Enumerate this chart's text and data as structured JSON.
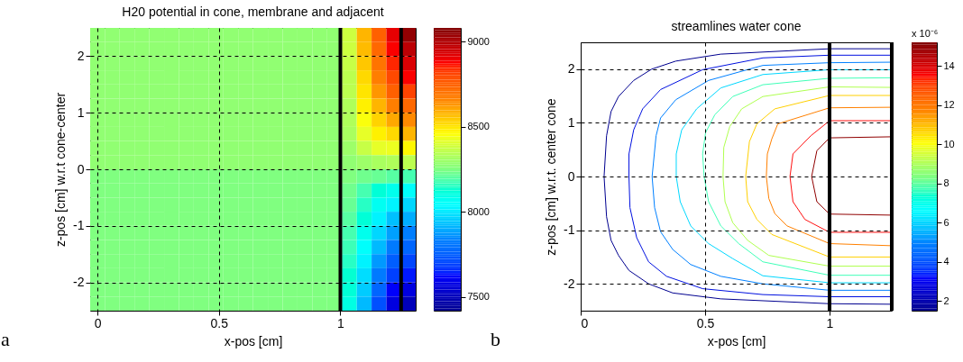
{
  "chart_data": [
    {
      "type": "heatmap",
      "title": "H20 potential in cone, membrane and adjacent",
      "xlabel": "x-pos [cm]",
      "ylabel": "z-pos [cm] w.r.t cone-center",
      "x": [
        0,
        0.061,
        0.122,
        0.183,
        0.244,
        0.305,
        0.366,
        0.427,
        0.488,
        0.549,
        0.61,
        0.671,
        0.732,
        0.793,
        0.854,
        0.915,
        0.976,
        1.037,
        1.098,
        1.159,
        1.22,
        1.281
      ],
      "y": [
        2.375,
        2.125,
        1.875,
        1.625,
        1.375,
        1.125,
        0.875,
        0.625,
        0.375,
        0.125,
        -0.125,
        -0.375,
        -0.625,
        -0.875,
        -1.125,
        -1.375,
        -1.625,
        -1.875,
        -2.125,
        -2.375
      ],
      "xlim": [
        -0.03,
        1.31
      ],
      "ylim": [
        -2.5,
        2.5
      ],
      "xticks": [
        0,
        0.5,
        1
      ],
      "yticks": [
        -2,
        -1,
        0,
        1,
        2
      ],
      "clim": [
        7420,
        9080
      ],
      "cticks": [
        7500,
        8000,
        8500,
        9000
      ],
      "grid": true,
      "cells": [
        [
          8280,
          8280,
          8280,
          8280,
          8280,
          8280,
          8280,
          8280,
          8280,
          8280,
          8280,
          8280,
          8280,
          8280,
          8280,
          8280,
          8280,
          8380,
          8580,
          8750,
          8910,
          9050
        ],
        [
          8280,
          8280,
          8280,
          8280,
          8280,
          8280,
          8280,
          8280,
          8280,
          8280,
          8280,
          8280,
          8280,
          8280,
          8280,
          8280,
          8280,
          8380,
          8570,
          8730,
          8880,
          8980
        ],
        [
          8280,
          8280,
          8280,
          8280,
          8280,
          8280,
          8280,
          8280,
          8280,
          8280,
          8280,
          8280,
          8280,
          8280,
          8280,
          8280,
          8280,
          8370,
          8550,
          8700,
          8850,
          8930
        ],
        [
          8280,
          8280,
          8280,
          8280,
          8280,
          8280,
          8280,
          8280,
          8280,
          8280,
          8280,
          8280,
          8280,
          8280,
          8280,
          8280,
          8280,
          8350,
          8520,
          8670,
          8800,
          8880
        ],
        [
          8280,
          8280,
          8280,
          8280,
          8280,
          8280,
          8280,
          8280,
          8280,
          8280,
          8280,
          8280,
          8280,
          8280,
          8280,
          8280,
          8280,
          8350,
          8500,
          8630,
          8750,
          8810
        ],
        [
          8280,
          8280,
          8280,
          8280,
          8280,
          8280,
          8280,
          8280,
          8280,
          8280,
          8280,
          8280,
          8280,
          8280,
          8280,
          8280,
          8280,
          8330,
          8480,
          8580,
          8670,
          8730
        ],
        [
          8280,
          8280,
          8280,
          8280,
          8280,
          8280,
          8280,
          8280,
          8280,
          8280,
          8280,
          8280,
          8280,
          8280,
          8280,
          8280,
          8280,
          8330,
          8450,
          8530,
          8600,
          8650
        ],
        [
          8280,
          8280,
          8280,
          8280,
          8280,
          8280,
          8280,
          8280,
          8280,
          8280,
          8280,
          8280,
          8280,
          8280,
          8280,
          8280,
          8280,
          8320,
          8420,
          8480,
          8520,
          8580
        ],
        [
          8280,
          8280,
          8280,
          8280,
          8280,
          8280,
          8280,
          8280,
          8280,
          8280,
          8280,
          8280,
          8280,
          8280,
          8280,
          8280,
          8280,
          8300,
          8370,
          8420,
          8430,
          8470
        ],
        [
          8280,
          8280,
          8280,
          8280,
          8280,
          8280,
          8280,
          8280,
          8280,
          8280,
          8280,
          8280,
          8280,
          8280,
          8280,
          8280,
          8280,
          8280,
          8300,
          8320,
          8330,
          8350
        ],
        [
          8250,
          8250,
          8250,
          8250,
          8250,
          8250,
          8250,
          8250,
          8250,
          8250,
          8250,
          8250,
          8250,
          8250,
          8250,
          8250,
          8250,
          8250,
          8230,
          8220,
          8200,
          8180
        ],
        [
          8250,
          8250,
          8250,
          8250,
          8250,
          8250,
          8250,
          8250,
          8250,
          8250,
          8250,
          8250,
          8250,
          8250,
          8250,
          8250,
          8250,
          8230,
          8180,
          8120,
          8080,
          8050
        ],
        [
          8250,
          8250,
          8250,
          8250,
          8250,
          8250,
          8250,
          8250,
          8250,
          8250,
          8250,
          8250,
          8250,
          8250,
          8250,
          8250,
          8250,
          8220,
          8150,
          8070,
          8020,
          7970
        ],
        [
          8250,
          8250,
          8250,
          8250,
          8250,
          8250,
          8250,
          8250,
          8250,
          8250,
          8250,
          8250,
          8250,
          8250,
          8250,
          8250,
          8250,
          8200,
          8120,
          8020,
          7930,
          7900
        ],
        [
          8250,
          8250,
          8250,
          8250,
          8250,
          8250,
          8250,
          8250,
          8250,
          8250,
          8250,
          8250,
          8250,
          8250,
          8250,
          8250,
          8250,
          8180,
          8080,
          7970,
          7880,
          7830
        ],
        [
          8250,
          8250,
          8250,
          8250,
          8250,
          8250,
          8250,
          8250,
          8250,
          8250,
          8250,
          8250,
          8250,
          8250,
          8250,
          8250,
          8250,
          8170,
          8050,
          7920,
          7820,
          7770
        ],
        [
          8250,
          8250,
          8250,
          8250,
          8250,
          8250,
          8250,
          8250,
          8250,
          8250,
          8250,
          8250,
          8250,
          8250,
          8250,
          8250,
          8250,
          8150,
          8020,
          7870,
          7750,
          7700
        ],
        [
          8250,
          8250,
          8250,
          8250,
          8250,
          8250,
          8250,
          8250,
          8250,
          8250,
          8250,
          8250,
          8250,
          8250,
          8250,
          8250,
          8250,
          8130,
          7980,
          7820,
          7690,
          7640
        ],
        [
          8250,
          8250,
          8250,
          8250,
          8250,
          8250,
          8250,
          8250,
          8250,
          8250,
          8250,
          8250,
          8250,
          8250,
          8250,
          8250,
          8250,
          8120,
          7950,
          7770,
          7620,
          7570
        ],
        [
          8250,
          8250,
          8250,
          8250,
          8250,
          8250,
          8250,
          8250,
          8250,
          8250,
          8250,
          8250,
          8250,
          8250,
          8250,
          8250,
          8250,
          8100,
          7920,
          7720,
          7570,
          7500
        ]
      ],
      "ref_lines": [
        {
          "axis": "x",
          "value": 1,
          "color": "#000000"
        },
        {
          "axis": "x",
          "value": 1.25,
          "color": "#000000"
        }
      ],
      "annotations": [
        "a"
      ]
    },
    {
      "type": "line",
      "title": "streamlines water cone",
      "xlabel": "x-pos [cm]",
      "ylabel": "z-pos [cm] w.r.t. center cone",
      "clabel": "x 10⁻⁶",
      "xlim": [
        0,
        1.25
      ],
      "ylim": [
        -2.5,
        2.5
      ],
      "xticks": [
        0,
        0.5,
        1
      ],
      "yticks": [
        -2,
        -1,
        0,
        1,
        2
      ],
      "clim": [
        1.5,
        15.2
      ],
      "cticks": [
        2,
        4,
        6,
        8,
        10,
        12,
        14
      ],
      "grid": true,
      "series": [
        {
          "color": "#00008f",
          "x": [
            1.25,
            1.0,
            0.563,
            0.382,
            0.285,
            0.213,
            0.152,
            0.122,
            0.104,
            0.094,
            0.104,
            0.122,
            0.152,
            0.194,
            0.273,
            0.37,
            0.563,
            1.0,
            1.25
          ],
          "values": [
            2.38,
            2.38,
            2.28,
            2.15,
            2.0,
            1.79,
            1.49,
            1.21,
            0.76,
            0,
            -0.75,
            -1.19,
            -1.47,
            -1.75,
            -2.0,
            -2.17,
            -2.28,
            -2.37,
            -2.38
          ]
        },
        {
          "color": "#0010e0",
          "x": [
            1.25,
            1.0,
            0.732,
            0.49,
            0.321,
            0.249,
            0.213,
            0.194,
            0.194,
            0.198,
            0.225,
            0.273,
            0.345,
            0.49,
            0.732,
            1.0,
            1.25
          ],
          "values": [
            2.26,
            2.26,
            2.21,
            1.99,
            1.62,
            1.26,
            0.87,
            0.42,
            0,
            -0.58,
            -1.14,
            -1.59,
            -1.86,
            -2.09,
            -2.2,
            -2.24,
            -2.24
          ]
        },
        {
          "color": "#0080ff",
          "x": [
            1.25,
            1.0,
            0.732,
            0.514,
            0.382,
            0.321,
            0.303,
            0.287,
            0.297,
            0.321,
            0.37,
            0.442,
            0.563,
            0.732,
            1.0,
            1.25
          ],
          "values": [
            2.13,
            2.12,
            2.07,
            1.79,
            1.43,
            1.09,
            0.76,
            0,
            -0.58,
            -1.03,
            -1.36,
            -1.64,
            -1.86,
            -2.0,
            -2.12,
            -2.12
          ]
        },
        {
          "color": "#00d8ff",
          "x": [
            1.25,
            1.0,
            0.732,
            0.563,
            0.466,
            0.406,
            0.384,
            0.384,
            0.4,
            0.442,
            0.514,
            0.611,
            0.732,
            1.0,
            1.25
          ],
          "values": [
            1.99,
            1.99,
            1.9,
            1.65,
            1.26,
            0.87,
            0.42,
            0,
            -0.47,
            -0.92,
            -1.25,
            -1.53,
            -1.85,
            -1.98,
            -1.98
          ]
        },
        {
          "color": "#40ffb8",
          "x": [
            1.25,
            1.0,
            0.732,
            0.611,
            0.539,
            0.502,
            0.49,
            0.496,
            0.514,
            0.563,
            0.635,
            0.732,
            1.0,
            1.25
          ],
          "values": [
            1.84,
            1.83,
            1.71,
            1.49,
            1.15,
            0.82,
            0.42,
            0,
            -0.47,
            -0.92,
            -1.25,
            -1.59,
            -1.84,
            -1.84
          ]
        },
        {
          "color": "#b0ff50",
          "x": [
            1.25,
            1.0,
            0.732,
            0.647,
            0.599,
            0.575,
            0.572,
            0.58,
            0.611,
            0.671,
            0.756,
            1.0,
            1.25
          ],
          "values": [
            1.66,
            1.67,
            1.49,
            1.26,
            0.93,
            0.54,
            0,
            -0.47,
            -0.86,
            -1.19,
            -1.47,
            -1.67,
            -1.67
          ]
        },
        {
          "color": "#ffd000",
          "x": [
            1.25,
            1.0,
            0.78,
            0.708,
            0.678,
            0.663,
            0.671,
            0.708,
            0.768,
            1.0,
            1.25
          ],
          "values": [
            1.51,
            1.51,
            1.26,
            0.98,
            0.65,
            0,
            -0.47,
            -0.8,
            -1.08,
            -1.5,
            -1.5
          ]
        },
        {
          "color": "#ff8000",
          "x": [
            1.25,
            1.0,
            0.792,
            0.768,
            0.75,
            0.746,
            0.756,
            0.78,
            0.829,
            1.0,
            1.25
          ],
          "values": [
            1.29,
            1.28,
            0.98,
            0.7,
            0.42,
            0,
            -0.41,
            -0.69,
            -0.92,
            -1.25,
            -1.29
          ]
        },
        {
          "color": "#ff1010",
          "x": [
            1.25,
            1.0,
            0.925,
            0.853,
            0.841,
            0.853,
            0.901,
            1.0,
            1.25
          ],
          "values": [
            1.04,
            1.04,
            0.76,
            0.42,
            0,
            -0.47,
            -0.8,
            -1.04,
            -1.04
          ]
        },
        {
          "color": "#900000",
          "x": [
            1.25,
            1.0,
            0.949,
            0.928,
            0.949,
            1.0,
            1.25
          ],
          "values": [
            0.74,
            0.72,
            0.48,
            0,
            -0.47,
            -0.7,
            -0.72
          ]
        }
      ],
      "ref_lines": [
        {
          "axis": "x",
          "value": 1,
          "color": "#000000"
        },
        {
          "axis": "x",
          "value": 1.25,
          "color": "#000000"
        }
      ],
      "annotations": [
        "b"
      ]
    }
  ]
}
